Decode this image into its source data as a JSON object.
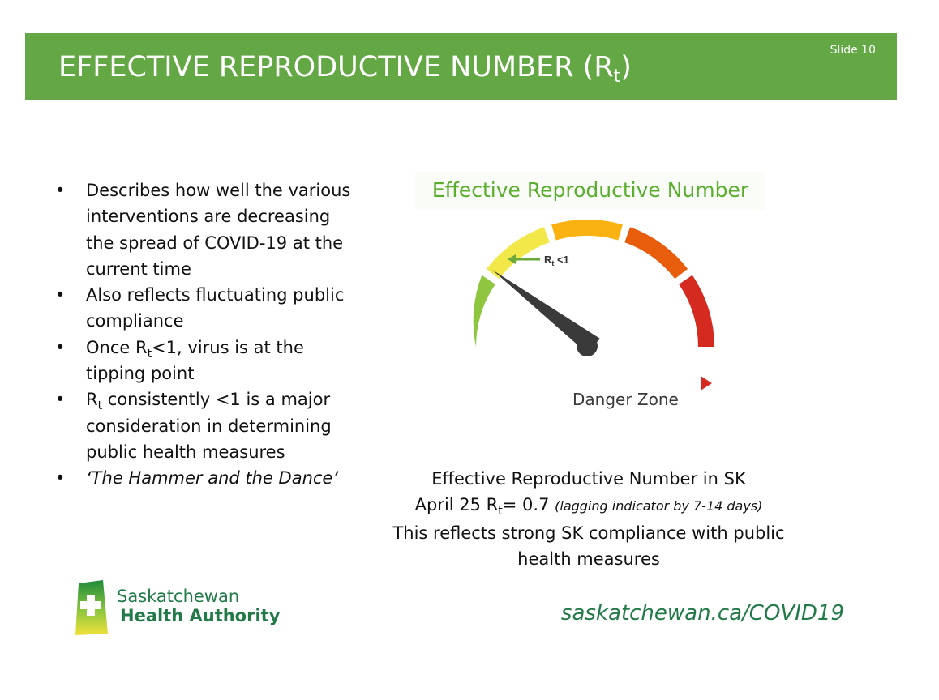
{
  "slide": {
    "title_main": "EFFECTIVE REPRODUCTIVE NUMBER (R",
    "title_sub": "t",
    "title_end": ")",
    "number_label": "Slide 10"
  },
  "bullets": {
    "b1": "Describes how well the various interventions are decreasing the spread of COVID-19 at the current time",
    "b2": "Also reflects fluctuating public compliance",
    "b3_pre": "Once R",
    "b3_sub": "t",
    "b3_post": "<1, virus is at the tipping point",
    "b4_pre": "R",
    "b4_sub": "t",
    "b4_post": " consistently <1 is a major consideration in determining public health measures",
    "b5": "‘The Hammer and the Dance’"
  },
  "gauge": {
    "title": "Effective Reproductive Number",
    "marker_label_pre": "R",
    "marker_label_sub": "t",
    "marker_label_post": " <1",
    "axis_label": "Danger Zone",
    "segment_colors": [
      "#8ec63f",
      "#f3e84a",
      "#f9b20f",
      "#e85d0b",
      "#d42a1f"
    ],
    "needle_color": "#3a3a3a"
  },
  "sk_info": {
    "line1": "Effective Reproductive Number in SK",
    "line2_pre": "April 25 R",
    "line2_sub": "t",
    "line2_post": "= 0.7 ",
    "line2_note": "(lagging indicator by 7-14 days)",
    "line3": "This reflects strong SK compliance with public health measures"
  },
  "logo": {
    "line1": "Saskatchewan",
    "line2": "Health Authority"
  },
  "footer": {
    "website": "saskatchewan.ca/COVID19"
  }
}
